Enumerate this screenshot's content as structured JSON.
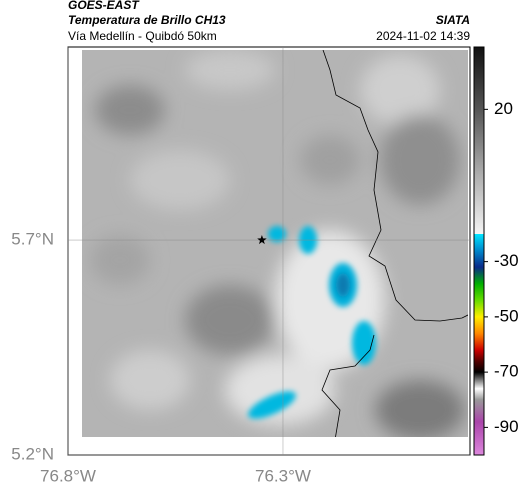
{
  "header": {
    "source": "GOES-EAST",
    "product": "Temperatura de Brillo CH13",
    "agency": "SIATA",
    "route": "Vía Medellín - Quibdó 50km",
    "datetime": "2024-11-02 14:39"
  },
  "map": {
    "lonlim": [
      -76.8,
      -75.865
    ],
    "latlim": [
      5.2,
      6.149
    ],
    "lonticks": [
      {
        "value": -76.8,
        "label": "76.8°W"
      },
      {
        "value": -76.3,
        "label": "76.3°W"
      }
    ],
    "latticks": [
      {
        "value": 5.7,
        "label": "5.7°N"
      },
      {
        "value": 5.2,
        "label": "5.2°N"
      }
    ],
    "grid": true,
    "marker": {
      "lon": -76.349,
      "lat": 5.7,
      "color": "#000"
    }
  },
  "colorbar": {
    "ticks": [
      20,
      -30,
      -50,
      -70,
      -90
    ],
    "segments": [
      {
        "range": [
          40,
          -20
        ],
        "stops": [
          [
            40,
            "#111111"
          ],
          [
            20,
            "#555555"
          ],
          [
            0,
            "#aaaaaa"
          ],
          [
            -20,
            "#f4f4f4"
          ]
        ]
      },
      {
        "range": [
          -20,
          -100
        ],
        "stops": [
          [
            -20,
            "#00e5ff"
          ],
          [
            -26,
            "#0088cc"
          ],
          [
            -32,
            "#0a2a8a"
          ],
          [
            -38,
            "#00b000"
          ],
          [
            -44,
            "#66dd00"
          ],
          [
            -50,
            "#ffee00"
          ],
          [
            -56,
            "#ff8800"
          ],
          [
            -62,
            "#cc0000"
          ],
          [
            -66,
            "#550000"
          ],
          [
            -70,
            "#000000"
          ],
          [
            -76,
            "#ffffff"
          ],
          [
            -80,
            "#999999"
          ],
          [
            -88,
            "#aa44aa"
          ],
          [
            -100,
            "#dd88dd"
          ]
        ]
      }
    ]
  }
}
